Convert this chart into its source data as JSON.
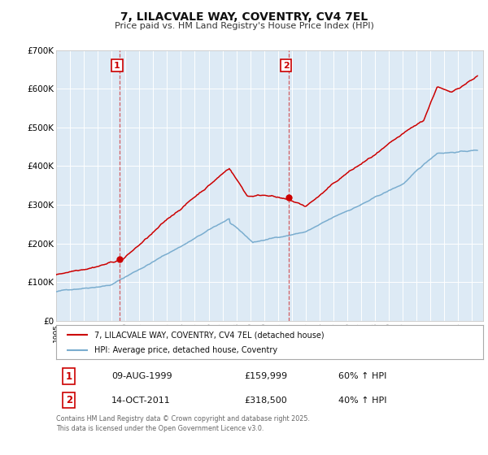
{
  "title": "7, LILACVALE WAY, COVENTRY, CV4 7EL",
  "subtitle": "Price paid vs. HM Land Registry's House Price Index (HPI)",
  "legend_label_red": "7, LILACVALE WAY, COVENTRY, CV4 7EL (detached house)",
  "legend_label_blue": "HPI: Average price, detached house, Coventry",
  "annotation1_label": "1",
  "annotation1_date": "09-AUG-1999",
  "annotation1_price": "£159,999",
  "annotation1_hpi": "60% ↑ HPI",
  "annotation2_label": "2",
  "annotation2_date": "14-OCT-2011",
  "annotation2_price": "£318,500",
  "annotation2_hpi": "40% ↑ HPI",
  "footnote": "Contains HM Land Registry data © Crown copyright and database right 2025.\nThis data is licensed under the Open Government Licence v3.0.",
  "sale1_year": 1999.6,
  "sale1_value": 159999,
  "sale2_year": 2011.78,
  "sale2_value": 318500,
  "red_color": "#cc0000",
  "blue_color": "#7aadcf",
  "vline_color": "#cc0000",
  "bg_color": "#ddeaf5",
  "plot_bg": "#ffffff",
  "ylim": [
    0,
    700000
  ],
  "ytick_values": [
    0,
    100000,
    200000,
    300000,
    400000,
    500000,
    600000,
    700000
  ],
  "ytick_labels": [
    "£0",
    "£100K",
    "£200K",
    "£300K",
    "£400K",
    "£500K",
    "£600K",
    "£700K"
  ],
  "xlim_start": 1995.0,
  "xlim_end": 2025.8
}
